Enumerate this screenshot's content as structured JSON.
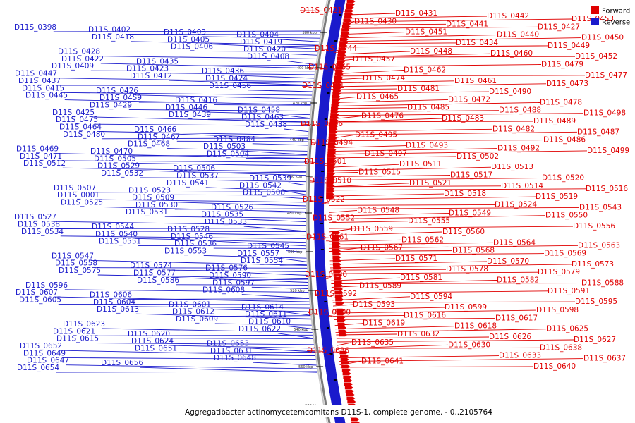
{
  "legend": {
    "forward_label": "Forward",
    "reverse_label": "Reverse",
    "forward_color": "#e00000",
    "reverse_color": "#1a1acc"
  },
  "caption": "Aggregatibacter actinomycetemcomitans D11S-1, complete genome. - 0..2105764",
  "ticks": [
    "380 kbp",
    "400 kbp",
    "420 kbp",
    "440 kbp",
    "460 kbp",
    "480 kbp",
    "500 kbp",
    "520 kbp",
    "540 kbp",
    "560 kbp",
    "580 kbp"
  ],
  "forward_labels": [
    "D11S_0421",
    "D11S_0431",
    "D11S_0442",
    "D11S_0453",
    "D11S_0430",
    "D11S_0441",
    "D11S_0427",
    "D11S_0451",
    "D11S_0440",
    "D11S_0450",
    "D11S_0434",
    "D11S_0449",
    "D11S_0444",
    "D11S_0448",
    "D11S_0460",
    "D11S_0452",
    "D11S_0457",
    "D11S_0479",
    "D11S_0455",
    "D11S_0462",
    "D11S_0477",
    "D11S_0474",
    "D11S_0461",
    "D11S_0473",
    "D11S_0491",
    "D11S_0481",
    "D11S_0490",
    "D11S_0465",
    "D11S_0472",
    "D11S_0478",
    "D11S_0485",
    "D11S_0488",
    "D11S_0498",
    "D11S_0476",
    "D11S_0483",
    "D11S_0489",
    "D11S_0496",
    "D11S_0482",
    "D11S_0487",
    "D11S_0495",
    "D11S_0486",
    "D11S_0494",
    "D11S_0493",
    "D11S_0492",
    "D11S_0499",
    "D11S_0497",
    "D11S_0502",
    "D11S_0501",
    "D11S_0511",
    "D11S_0513",
    "D11S_0515",
    "D11S_0517",
    "D11S_0520",
    "D11S_0510",
    "D11S_0521",
    "D11S_0514",
    "D11S_0516",
    "D11S_0518",
    "D11S_0519",
    "D11S_0522",
    "D11S_0524",
    "D11S_0543",
    "D11S_0548",
    "D11S_0549",
    "D11S_0550",
    "D11S_0552",
    "D11S_0555",
    "D11S_0556",
    "D11S_0559",
    "D11S_0560",
    "D11S_0561",
    "D11S_0562",
    "D11S_0564",
    "D11S_0563",
    "D11S_0567",
    "D11S_0568",
    "D11S_0569",
    "D11S_0571",
    "D11S_0570",
    "D11S_0573",
    "D11S_0578",
    "D11S_0579",
    "D11S_0580",
    "D11S_0581",
    "D11S_0582",
    "D11S_0588",
    "D11S_0589",
    "D11S_0591",
    "D11S_0592",
    "D11S_0594",
    "D11S_0595",
    "D11S_0593",
    "D11S_0599",
    "D11S_0598",
    "D11S_0600",
    "D11S_0616",
    "D11S_0617",
    "D11S_0619",
    "D11S_0618",
    "D11S_0625",
    "D11S_0632",
    "D11S_0626",
    "D11S_0627",
    "D11S_0635",
    "D11S_0630",
    "D11S_0638",
    "D11S_0636",
    "D11S_0633",
    "D11S_0637",
    "D11S_0641",
    "D11S_0640"
  ],
  "reverse_labels": [
    "D11S_0398",
    "D11S_0402",
    "D11S_0403",
    "D11S_0404",
    "D11S_0418",
    "D11S_0405",
    "D11S_0419",
    "D11S_0406",
    "D11S_0420",
    "D11S_0428",
    "D11S_0408",
    "D11S_0422",
    "D11S_0435",
    "D11S_0409",
    "D11S_0423",
    "D11S_0436",
    "D11S_0447",
    "D11S_0412",
    "D11S_0424",
    "D11S_0437",
    "D11S_0456",
    "D11S_0415",
    "D11S_0426",
    "D11S_0445",
    "D11S_0459",
    "D11S_0416",
    "D11S_0429",
    "D11S_0446",
    "D11S_0458",
    "D11S_0425",
    "D11S_0439",
    "D11S_0463",
    "D11S_0475",
    "D11S_0438",
    "D11S_0464",
    "D11S_0466",
    "D11S_0480",
    "D11S_0467",
    "D11S_0484",
    "D11S_0468",
    "D11S_0503",
    "D11S_0469",
    "D11S_0470",
    "D11S_0504",
    "D11S_0471",
    "D11S_0505",
    "D11S_0512",
    "D11S_0529",
    "D11S_0506",
    "D11S_0532",
    "D11S_0537",
    "D11S_0539",
    "D11S_0541",
    "D11S_0542",
    "D11S_0507",
    "D11S_0523",
    "D11S_0508",
    "D11S_0001",
    "D11S_0509",
    "D11S_0525",
    "D11S_0530",
    "D11S_0526",
    "D11S_0531",
    "D11S_0535",
    "D11S_0527",
    "D11S_0533",
    "D11S_0538",
    "D11S_0544",
    "D11S_0528",
    "D11S_0534",
    "D11S_0540",
    "D11S_0546",
    "D11S_0551",
    "D11S_0536",
    "D11S_0545",
    "D11S_0553",
    "D11S_0557",
    "D11S_0547",
    "D11S_0554",
    "D11S_0558",
    "D11S_0574",
    "D11S_0576",
    "D11S_0575",
    "D11S_0577",
    "D11S_0590",
    "D11S_0586",
    "D11S_0597",
    "D11S_0596",
    "D11S_0608",
    "D11S_0607",
    "D11S_0606",
    "D11S_0605",
    "D11S_0604",
    "D11S_0601",
    "D11S_0614",
    "D11S_0613",
    "D11S_0612",
    "D11S_0611",
    "D11S_0609",
    "D11S_0610",
    "D11S_0623",
    "D11S_0622",
    "D11S_0621",
    "D11S_0620",
    "D11S_0615",
    "D11S_0624",
    "D11S_0653",
    "D11S_0652",
    "D11S_0651",
    "D11S_0631",
    "D11S_0649",
    "D11S_0648",
    "D11S_0647",
    "D11S_0656",
    "D11S_0654"
  ]
}
